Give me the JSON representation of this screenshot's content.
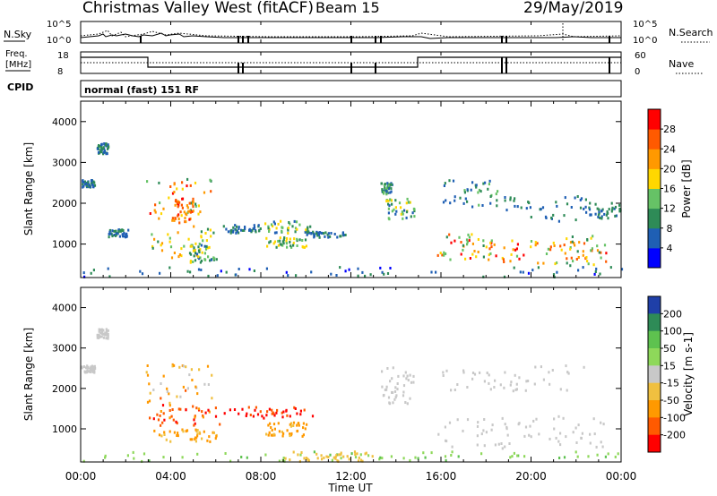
{
  "header": {
    "station": "Christmas Valley West (fitACF)",
    "beam": "Beam 15",
    "date": "29/May/2019"
  },
  "top_panel": {
    "left_label": "N.Sky",
    "right_label": "N.Search",
    "left_ticks": [
      "10^5",
      "10^0"
    ],
    "right_ticks": [
      "10^5",
      "10^0"
    ]
  },
  "freq_panel": {
    "left_label_line1": "Freq.",
    "left_label_line2": "[MHz]",
    "right_label": "Nave",
    "left_ticks": [
      "18",
      "8"
    ],
    "right_ticks": [
      "60",
      "0"
    ]
  },
  "cpid": {
    "label": "CPID",
    "value": "normal (fast) 151 RF"
  },
  "x_axis": {
    "label": "Time UT",
    "ticks": [
      "00:00",
      "04:00",
      "08:00",
      "12:00",
      "16:00",
      "20:00",
      "00:00"
    ]
  },
  "colors": {
    "power_scale": [
      "#0000ff",
      "#1f5fb4",
      "#2e8b57",
      "#66c266",
      "#ffd700",
      "#ff9900",
      "#ff5a00",
      "#ff0000"
    ],
    "velocity_scale": [
      "#1f3fa8",
      "#2e8b57",
      "#5ec24f",
      "#8ed85a",
      "#c8c8c8",
      "#f0c040",
      "#ff9900",
      "#ff5a00",
      "#ff0000"
    ]
  },
  "chart_data": [
    {
      "type": "heatmap",
      "panel": "power",
      "ylabel": "Slant Range [km]",
      "xlabel": "",
      "ylim": [
        180,
        4500
      ],
      "xlim_hours": [
        0,
        24
      ],
      "yticks": [
        "1000",
        "2000",
        "3000",
        "4000"
      ],
      "colorbar": {
        "label": "Power [dB]",
        "ticks": [
          "4",
          "8",
          "12",
          "16",
          "20",
          "24",
          "28"
        ],
        "range": [
          0,
          32
        ]
      },
      "regions": [
        {
          "t0": 0.1,
          "t1": 24,
          "r0": 180,
          "r1": 420,
          "v0": 2,
          "v1": 12
        },
        {
          "t0": 0.7,
          "t1": 1.2,
          "r0": 3200,
          "r1": 3450,
          "v0": 4,
          "v1": 12
        },
        {
          "t0": 0.0,
          "t1": 0.6,
          "r0": 2380,
          "r1": 2550,
          "v0": 4,
          "v1": 10
        },
        {
          "t0": 1.2,
          "t1": 2.1,
          "r0": 1150,
          "r1": 1350,
          "v0": 4,
          "v1": 10
        },
        {
          "t0": 2.8,
          "t1": 5.8,
          "r0": 1550,
          "r1": 2600,
          "v0": 8,
          "v1": 30
        },
        {
          "t0": 3.0,
          "t1": 6.2,
          "r0": 650,
          "r1": 1450,
          "v0": 8,
          "v1": 26
        },
        {
          "t0": 4.0,
          "t1": 5.0,
          "r0": 1500,
          "r1": 2100,
          "v0": 20,
          "v1": 30
        },
        {
          "t0": 4.8,
          "t1": 6.0,
          "r0": 500,
          "r1": 1000,
          "v0": 6,
          "v1": 20
        },
        {
          "t0": 6.3,
          "t1": 8.0,
          "r0": 1250,
          "r1": 1450,
          "v0": 4,
          "v1": 12
        },
        {
          "t0": 8.0,
          "t1": 10.3,
          "r0": 1250,
          "r1": 1550,
          "v0": 6,
          "v1": 18
        },
        {
          "t0": 8.2,
          "t1": 10.0,
          "r0": 900,
          "r1": 1150,
          "v0": 8,
          "v1": 20
        },
        {
          "t0": 10.0,
          "t1": 11.8,
          "r0": 1150,
          "r1": 1300,
          "v0": 4,
          "v1": 10
        },
        {
          "t0": 13.5,
          "t1": 14.8,
          "r0": 1600,
          "r1": 2100,
          "v0": 6,
          "v1": 20
        },
        {
          "t0": 13.3,
          "t1": 13.8,
          "r0": 2200,
          "r1": 2500,
          "v0": 6,
          "v1": 14
        },
        {
          "t0": 15.8,
          "t1": 18.2,
          "r0": 600,
          "r1": 1300,
          "v0": 10,
          "v1": 30
        },
        {
          "t0": 16.0,
          "t1": 18.5,
          "r0": 1900,
          "r1": 2550,
          "v0": 4,
          "v1": 14
        },
        {
          "t0": 18.0,
          "t1": 21.5,
          "r0": 500,
          "r1": 1100,
          "v0": 12,
          "v1": 30
        },
        {
          "t0": 21.5,
          "t1": 23.3,
          "r0": 450,
          "r1": 1200,
          "v0": 10,
          "v1": 30
        },
        {
          "t0": 18.5,
          "t1": 22.5,
          "r0": 1500,
          "r1": 2200,
          "v0": 4,
          "v1": 12
        },
        {
          "t0": 22.5,
          "t1": 24,
          "r0": 1600,
          "r1": 2000,
          "v0": 6,
          "v1": 12
        }
      ]
    },
    {
      "type": "heatmap",
      "panel": "velocity",
      "ylabel": "Slant Range [km]",
      "xlabel": "Time UT",
      "ylim": [
        180,
        4500
      ],
      "xlim_hours": [
        0,
        24
      ],
      "yticks": [
        "1000",
        "2000",
        "3000",
        "4000"
      ],
      "colorbar": {
        "label": "Velocity [m s-1]",
        "ticks": [
          "200",
          "100",
          "50",
          "15",
          "-15",
          "-50",
          "-100",
          "-200"
        ]
      },
      "regions": [
        {
          "t0": 0.1,
          "t1": 24,
          "r0": 180,
          "r1": 420,
          "v0": 15,
          "v1": 60
        },
        {
          "t0": 9.0,
          "t1": 13.0,
          "r0": 180,
          "r1": 420,
          "v0": -40,
          "v1": -15
        },
        {
          "t0": 0.7,
          "t1": 1.2,
          "r0": 3200,
          "r1": 3450,
          "v0": -10,
          "v1": 10
        },
        {
          "t0": 0.0,
          "t1": 0.6,
          "r0": 2380,
          "r1": 2550,
          "v0": -10,
          "v1": 10
        },
        {
          "t0": 2.8,
          "t1": 5.8,
          "r0": 1550,
          "r1": 2600,
          "v0": -120,
          "v1": 10
        },
        {
          "t0": 3.0,
          "t1": 6.2,
          "r0": 1050,
          "r1": 1600,
          "v0": -250,
          "v1": -80
        },
        {
          "t0": 3.2,
          "t1": 6.0,
          "r0": 650,
          "r1": 1000,
          "v0": -80,
          "v1": -30
        },
        {
          "t0": 6.3,
          "t1": 10.3,
          "r0": 1250,
          "r1": 1550,
          "v0": -250,
          "v1": -100
        },
        {
          "t0": 8.2,
          "t1": 10.0,
          "r0": 800,
          "r1": 1150,
          "v0": -100,
          "v1": -40
        },
        {
          "t0": 13.3,
          "t1": 14.8,
          "r0": 1600,
          "r1": 2500,
          "v0": -10,
          "v1": 10
        },
        {
          "t0": 15.8,
          "t1": 23.3,
          "r0": 500,
          "r1": 1300,
          "v0": -12,
          "v1": 12
        },
        {
          "t0": 16.0,
          "t1": 22.5,
          "r0": 1900,
          "r1": 2550,
          "v0": -12,
          "v1": 12
        }
      ]
    }
  ]
}
